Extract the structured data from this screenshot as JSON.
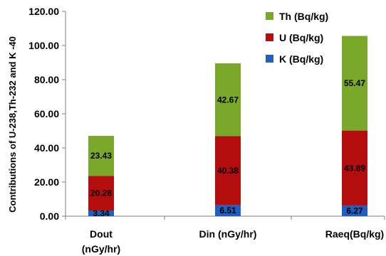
{
  "chart_data": {
    "type": "bar",
    "stacked": true,
    "categories": [
      "Dout\n(nGy/hr)",
      "Din (nGy/hr)",
      "Raeq(Bq/kg)"
    ],
    "series": [
      {
        "name": "K (Bq/kg)",
        "color": "#1f5fbf",
        "values": [
          3.34,
          6.51,
          6.27
        ]
      },
      {
        "name": "U (Bq/kg)",
        "color": "#b30d0d",
        "values": [
          20.28,
          40.38,
          43.89
        ]
      },
      {
        "name": "Th (Bq/kg)",
        "color": "#7aa82a",
        "values": [
          23.43,
          42.67,
          55.47
        ]
      }
    ],
    "ylabel": "Contributions of U-238,Th-232 and K -40",
    "xlabel": "",
    "title": "",
    "ylim": [
      0,
      120
    ],
    "yticks": [
      "0.00",
      "20.00",
      "40.00",
      "60.00",
      "80.00",
      "100.00",
      "120.00"
    ],
    "grid": false,
    "legend_position": "top-right",
    "legend_order": [
      "Th (Bq/kg)",
      "U (Bq/kg)",
      "K (Bq/kg)"
    ]
  }
}
